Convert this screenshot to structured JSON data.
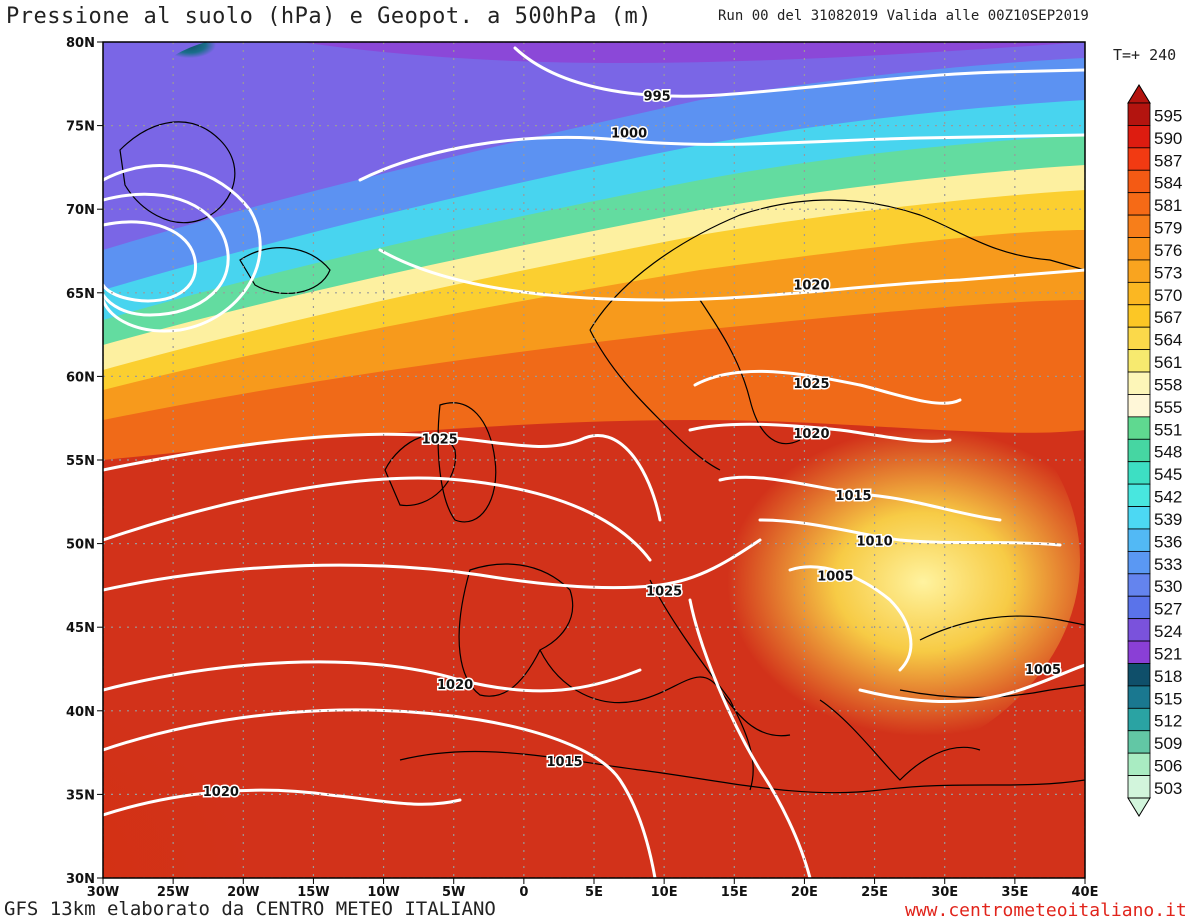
{
  "header": {
    "title": "Pressione al suolo (hPa) e Geopot. a 500hPa (m)",
    "run_info": "Run 00 del 31082019  Valida alle 00Z10SEP2019",
    "forecast_step": "T=+ 240"
  },
  "footer": {
    "credits": "GFS 13km elaborato da CENTRO METEO ITALIANO",
    "website": "www.centrometeoitaliano.it"
  },
  "map": {
    "lon_range": [
      -30,
      40
    ],
    "lat_range": [
      30,
      80
    ],
    "lon_ticks": [
      "30W",
      "25W",
      "20W",
      "15W",
      "10W",
      "5W",
      "0",
      "5E",
      "10E",
      "15E",
      "20E",
      "25E",
      "30E",
      "35E",
      "40E"
    ],
    "lat_ticks": [
      "80N",
      "75N",
      "70N",
      "65N",
      "60N",
      "55N",
      "50N",
      "45N",
      "40N",
      "35N",
      "30N"
    ],
    "isobar_color": "#ffffff",
    "coastline_color": "#000000",
    "isobar_labels": [
      {
        "text": "995",
        "lon": 9.5,
        "lat": 76.8
      },
      {
        "text": "1000",
        "lon": 7.5,
        "lat": 74.6
      },
      {
        "text": "1020",
        "lon": 20.5,
        "lat": 65.5
      },
      {
        "text": "1025",
        "lon": 20.5,
        "lat": 59.6
      },
      {
        "text": "1020",
        "lon": 20.5,
        "lat": 56.6
      },
      {
        "text": "1025",
        "lon": -6.0,
        "lat": 56.3
      },
      {
        "text": "1015",
        "lon": 23.5,
        "lat": 52.9
      },
      {
        "text": "1010",
        "lon": 25.0,
        "lat": 50.2
      },
      {
        "text": "1005",
        "lon": 22.2,
        "lat": 48.1
      },
      {
        "text": "1025",
        "lon": 10.0,
        "lat": 47.2
      },
      {
        "text": "1020",
        "lon": -4.9,
        "lat": 41.6
      },
      {
        "text": "1015",
        "lon": 2.9,
        "lat": 37.0
      },
      {
        "text": "1005",
        "lon": 37.0,
        "lat": 42.5
      },
      {
        "text": "1020",
        "lon": -21.6,
        "lat": 35.2
      }
    ]
  },
  "colorbar": {
    "values": [
      "595",
      "590",
      "587",
      "584",
      "581",
      "579",
      "576",
      "573",
      "570",
      "567",
      "564",
      "561",
      "558",
      "555",
      "551",
      "548",
      "545",
      "542",
      "539",
      "536",
      "533",
      "530",
      "527",
      "524",
      "521",
      "518",
      "515",
      "512",
      "509",
      "506",
      "503"
    ],
    "colors": [
      "#b3140f",
      "#dd1c10",
      "#f23a12",
      "#f45a14",
      "#f66a16",
      "#f77e1a",
      "#f8931c",
      "#f9a41f",
      "#fbb722",
      "#fcc725",
      "#fbd94a",
      "#f7ea6f",
      "#fdf6b8",
      "#fff7d8",
      "#5fd990",
      "#46d6a2",
      "#3ddfc3",
      "#48e7df",
      "#4cd8f3",
      "#52b9f5",
      "#5a98f3",
      "#6484ee",
      "#5a73ea",
      "#7a52dc",
      "#8a3fd6",
      "#0f4f6a",
      "#1a7890",
      "#2aa3a3",
      "#62c7a5",
      "#a9ecc2",
      "#d2f5dc"
    ]
  }
}
